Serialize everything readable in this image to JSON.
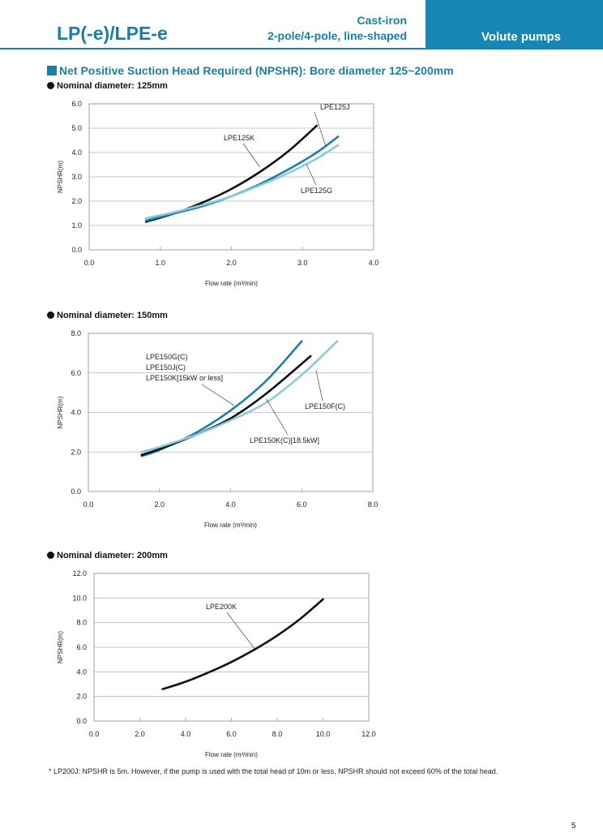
{
  "header": {
    "title": "LP(-e)/LPE-e",
    "subtitle_line1": "Cast-iron",
    "subtitle_line2": "2-pole/4-pole, line-shaped",
    "tab_label": "Volute pumps"
  },
  "section_title": "Net Positive Suction Head Required (NPSHR): Bore diameter 125~200mm",
  "colors": {
    "accent": "#1a7fa5",
    "tab": "#1687b5",
    "black": "#111111",
    "teal": "#1a7fa5",
    "light_blue": "#8ec8dc"
  },
  "chart_data": [
    {
      "type": "line",
      "heading": "Nominal diameter: 125mm",
      "xlabel": "Flow rate (m³/min)",
      "ylabel": "NPSHR(m)",
      "xlim": [
        0,
        4
      ],
      "ylim": [
        0,
        6
      ],
      "xticks": [
        0,
        1,
        2,
        3,
        4
      ],
      "yticks": [
        0,
        1,
        2,
        3,
        4,
        5,
        6
      ],
      "xtick_labels": [
        "0.0",
        "1.0",
        "2.0",
        "3.0",
        "4.0"
      ],
      "ytick_labels": [
        "0.0",
        "1.0",
        "2.0",
        "3.0",
        "4.0",
        "5.0",
        "6.0"
      ],
      "grid": "horizontal",
      "series": [
        {
          "name": "LPE125K",
          "color": "#111111",
          "x": [
            0.8,
            1.2,
            1.6,
            2.0,
            2.4,
            2.8,
            3.2
          ],
          "y": [
            1.15,
            1.5,
            1.95,
            2.5,
            3.2,
            4.05,
            5.1
          ]
        },
        {
          "name": "LPE125J",
          "color": "#1a7fa5",
          "x": [
            0.8,
            1.2,
            1.6,
            2.0,
            2.4,
            2.8,
            3.2,
            3.5
          ],
          "y": [
            1.2,
            1.5,
            1.8,
            2.2,
            2.7,
            3.3,
            4.0,
            4.65
          ]
        },
        {
          "name": "LPE125G",
          "color": "#8ec8dc",
          "x": [
            0.8,
            1.2,
            1.6,
            2.0,
            2.4,
            2.8,
            3.2,
            3.5
          ],
          "y": [
            1.3,
            1.55,
            1.85,
            2.2,
            2.65,
            3.15,
            3.75,
            4.3
          ]
        }
      ],
      "annotations": [
        {
          "text": "LPE125J",
          "at": [
            3.33,
            4.23
          ]
        },
        {
          "text": "LPE125K",
          "at": [
            2.4,
            3.4
          ]
        },
        {
          "text": "LPE125G",
          "at": [
            3.05,
            3.55
          ]
        }
      ]
    },
    {
      "type": "line",
      "heading": "Nominal diameter: 150mm",
      "xlabel": "Flow rate (m³/min)",
      "ylabel": "NPSHR(m)",
      "xlim": [
        0,
        8
      ],
      "ylim": [
        0,
        8
      ],
      "xticks": [
        0,
        2,
        4,
        6,
        8
      ],
      "yticks": [
        0,
        2,
        4,
        6,
        8
      ],
      "xtick_labels": [
        "0.0",
        "2.0",
        "4.0",
        "6.0",
        "8.0"
      ],
      "ytick_labels": [
        "0.0",
        "2.0",
        "4.0",
        "6.0",
        "8.0"
      ],
      "grid": "horizontal",
      "series": [
        {
          "name": "LPE150G(C) LPE150J(C) LPE150K[15kW or less]",
          "color": "#1a7fa5",
          "x": [
            1.5,
            2.0,
            3.0,
            4.0,
            5.0,
            6.0
          ],
          "y": [
            1.8,
            2.1,
            2.95,
            4.1,
            5.6,
            7.6
          ]
        },
        {
          "name": "LPE150K(C)[18.5kW]",
          "color": "#111111",
          "x": [
            1.5,
            2.0,
            3.0,
            4.0,
            5.0,
            6.25
          ],
          "y": [
            1.85,
            2.15,
            2.85,
            3.7,
            4.95,
            6.85
          ]
        },
        {
          "name": "LPE150F(C)",
          "color": "#8ec8dc",
          "x": [
            1.5,
            2.0,
            3.0,
            4.0,
            5.0,
            6.0,
            7.0
          ],
          "y": [
            2.0,
            2.25,
            2.85,
            3.6,
            4.5,
            5.9,
            7.6
          ]
        }
      ],
      "annotations": [
        {
          "text": "LPE150G(C)",
          "at": [
            4.1,
            4.35
          ]
        },
        {
          "text": "LPE150J(C)",
          "at": [
            4.1,
            4.35
          ]
        },
        {
          "text": "LPE150K[15kW or less]",
          "at": [
            4.1,
            4.35
          ]
        },
        {
          "text": "LPE150F(C)",
          "at": [
            6.4,
            6.15
          ]
        },
        {
          "text": "LPE150K(C)[18.5kW]",
          "at": [
            5.0,
            4.7
          ]
        }
      ]
    },
    {
      "type": "line",
      "heading": "Nominal diameter: 200mm",
      "xlabel": "Flow rate (m³/min)",
      "ylabel": "NPSHR(m)",
      "xlim": [
        0,
        12
      ],
      "ylim": [
        0,
        12
      ],
      "xticks": [
        0,
        2,
        4,
        6,
        8,
        10,
        12
      ],
      "yticks": [
        0,
        2,
        4,
        6,
        8,
        10,
        12
      ],
      "xtick_labels": [
        "0.0",
        "2.0",
        "4.0",
        "6.0",
        "8.0",
        "10.0",
        "12.0"
      ],
      "ytick_labels": [
        "0.0",
        "2.0",
        "4.0",
        "6.0",
        "8.0",
        "10.0",
        "12.0"
      ],
      "grid": "horizontal",
      "series": [
        {
          "name": "LPE200K",
          "color": "#111111",
          "x": [
            3,
            4,
            5,
            6,
            7,
            8,
            9,
            10
          ],
          "y": [
            2.6,
            3.2,
            3.95,
            4.8,
            5.8,
            6.95,
            8.3,
            9.9
          ]
        }
      ],
      "annotations": [
        {
          "text": "LPE200K",
          "at": [
            7.0,
            5.9
          ]
        }
      ]
    }
  ],
  "footnote": "* LP200J: NPSHR is 5m. However, if the pump is used with the total head of 10m or less, NPSHR should not exceed 60% of the total head.",
  "page_number": "5"
}
